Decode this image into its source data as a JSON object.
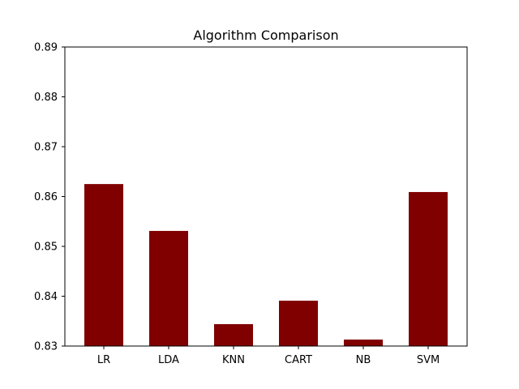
{
  "chart_data": {
    "type": "bar",
    "title": "Algorithm Comparison",
    "xlabel": "",
    "ylabel": "",
    "categories": [
      "LR",
      "LDA",
      "KNN",
      "CART",
      "NB",
      "SVM"
    ],
    "values": [
      0.8625,
      0.8531,
      0.8344,
      0.8391,
      0.8313,
      0.8609
    ],
    "ylim": [
      0.83,
      0.89
    ],
    "yticks": [
      0.83,
      0.84,
      0.85,
      0.86,
      0.87,
      0.88,
      0.89
    ],
    "ytick_labels": [
      "0.83",
      "0.84",
      "0.85",
      "0.86",
      "0.87",
      "0.88",
      "0.89"
    ],
    "grid": false,
    "legend": "none",
    "bar_color": "#800000"
  }
}
